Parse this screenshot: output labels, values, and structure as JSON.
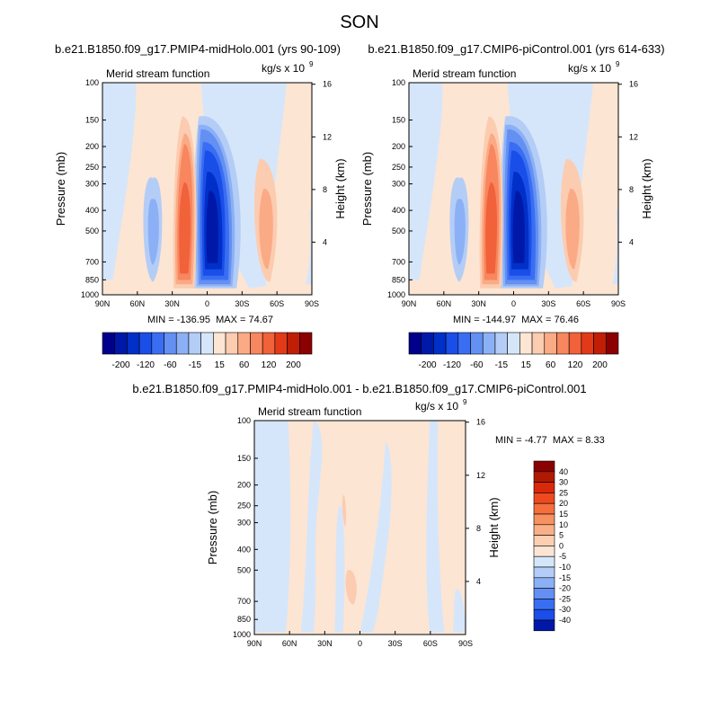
{
  "page": {
    "title": "SON"
  },
  "palette": {
    "main": [
      "#00008b",
      "#0018a8",
      "#0030c8",
      "#1a4ee8",
      "#3a6ef2",
      "#6390f2",
      "#8cb0f5",
      "#b4cdf7",
      "#d6e6fa",
      "#fde5d3",
      "#fcccb0",
      "#fbaa86",
      "#f8865e",
      "#f1613a",
      "#e23a18",
      "#c01e06",
      "#8b0000"
    ],
    "main_labels": [
      "-200",
      "-120",
      "-60",
      "-15",
      "15",
      "60",
      "120",
      "200"
    ],
    "diff_labels": [
      "40",
      "30",
      "25",
      "20",
      "15",
      "10",
      "5",
      "0",
      "-5",
      "-10",
      "-15",
      "-20",
      "-25",
      "-30",
      "-40"
    ],
    "diff_colors": [
      "#8b0000",
      "#b01a02",
      "#d9280a",
      "#ee4a1e",
      "#f56e3c",
      "#f7915f",
      "#f9b088",
      "#fccfb1",
      "#fde5d3",
      "#d6e6fa",
      "#b4cdf7",
      "#8cb0f5",
      "#6390f2",
      "#3a6ef2",
      "#1a4ee8",
      "#0018a8"
    ]
  },
  "chart_data": [
    {
      "type": "heatmap",
      "title": "b.e21.B1850.f09_g17.PMIP4-midHolo.001 (yrs 90-109)",
      "label": "Merid stream function",
      "units": "kg/s x 10",
      "units_exp": "9",
      "xlabel": "",
      "ylabel": "Pressure (mb)",
      "ylabel_right": "Height (km)",
      "xticks": [
        "90N",
        "60N",
        "30N",
        "0",
        "30S",
        "60S",
        "90S"
      ],
      "yticks": [
        "100",
        "150",
        "200",
        "250",
        "300",
        "400",
        "500",
        "700",
        "850",
        "1000"
      ],
      "rticks": [
        "16",
        "12",
        "8",
        "4"
      ],
      "min": -136.95,
      "max": 74.67,
      "min_label": "MIN = -136.95",
      "max_label": "MAX = 74.67"
    },
    {
      "type": "heatmap",
      "title": "b.e21.B1850.f09_g17.CMIP6-piControl.001 (yrs 614-633)",
      "label": "Merid stream function",
      "units": "kg/s x 10",
      "units_exp": "9",
      "xlabel": "",
      "ylabel": "Pressure (mb)",
      "ylabel_right": "Height (km)",
      "xticks": [
        "90N",
        "60N",
        "30N",
        "0",
        "30S",
        "60S",
        "90S"
      ],
      "yticks": [
        "100",
        "150",
        "200",
        "250",
        "300",
        "400",
        "500",
        "700",
        "850",
        "1000"
      ],
      "rticks": [
        "16",
        "12",
        "8",
        "4"
      ],
      "min": -144.97,
      "max": 76.46,
      "min_label": "MIN = -144.97",
      "max_label": "MAX = 76.46"
    },
    {
      "type": "heatmap",
      "title": "b.e21.B1850.f09_g17.PMIP4-midHolo.001 - b.e21.B1850.f09_g17.CMIP6-piControl.001",
      "label": "Merid stream function",
      "units": "kg/s x 10",
      "units_exp": "9",
      "xlabel": "",
      "ylabel": "Pressure (mb)",
      "ylabel_right": "Height (km)",
      "xticks": [
        "90N",
        "60N",
        "30N",
        "0",
        "30S",
        "60S",
        "90S"
      ],
      "yticks": [
        "100",
        "150",
        "200",
        "250",
        "300",
        "400",
        "500",
        "700",
        "850",
        "1000"
      ],
      "rticks": [
        "16",
        "12",
        "8",
        "4"
      ],
      "min": -4.77,
      "max": 8.33,
      "min_label": "MIN = -4.77",
      "max_label": "MAX = 8.33"
    }
  ]
}
